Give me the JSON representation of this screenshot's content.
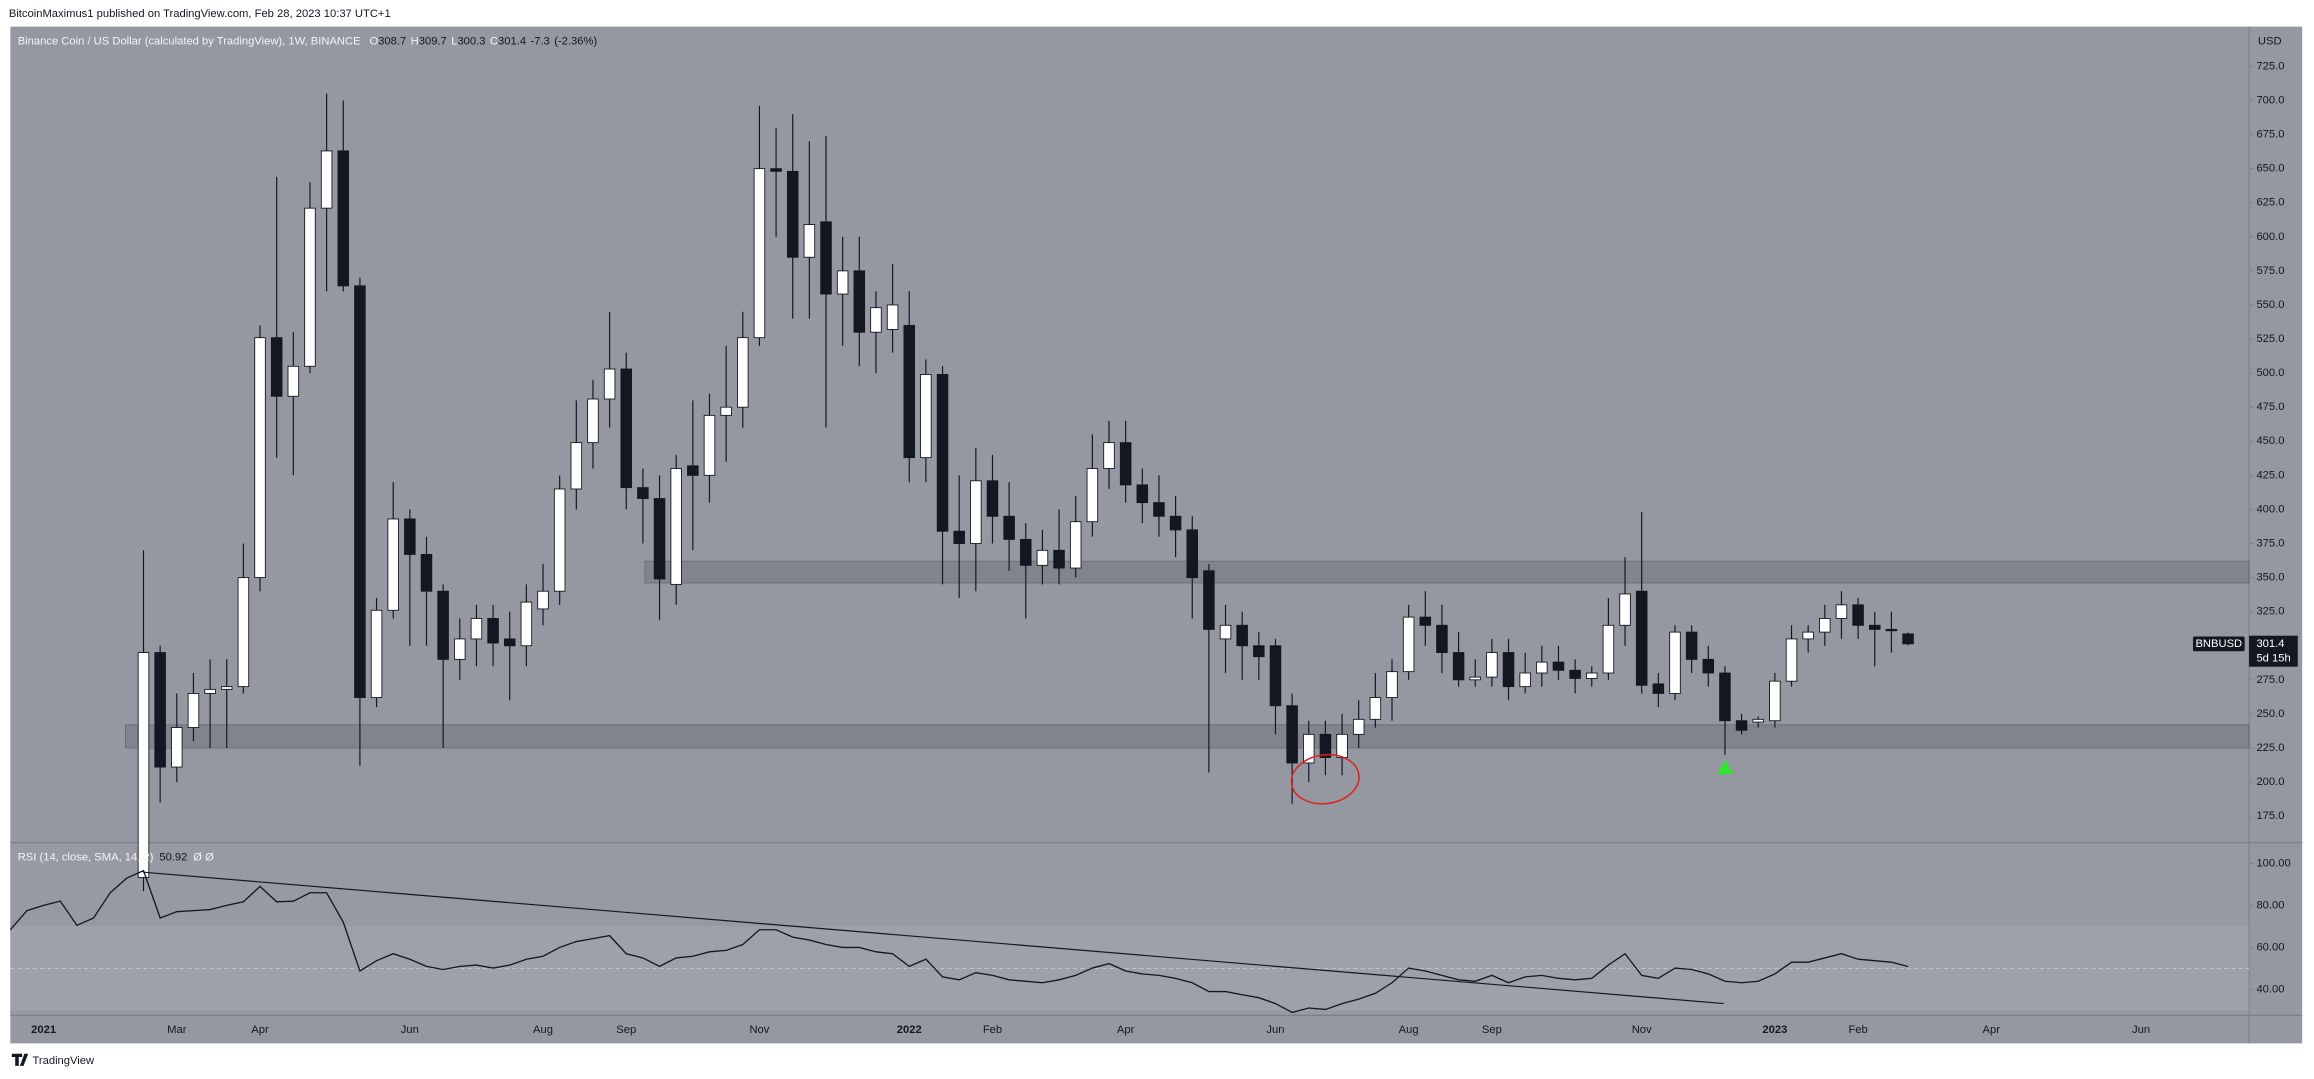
{
  "chart_data": {
    "type": "candlestick",
    "publisher": "BitcoinMaximus1 published on TradingView.com, Feb 28, 2023 10:37 UTC+1",
    "title": "Binance Coin / US Dollar (calculated by TradingView), 1W, BINANCE",
    "ohlc_labels": [
      "O",
      "H",
      "L",
      "C"
    ],
    "change": -7.3,
    "change_pct": {
      "value": -2.36,
      "label": "(-2.36%)"
    },
    "symbol": "BNBUSD",
    "countdown": "5d 15h",
    "y_axis_label": "USD",
    "footer": "TradingView",
    "categories": [
      null,
      null,
      "2021",
      null,
      null,
      null,
      null,
      null,
      null,
      null,
      "Mar",
      null,
      null,
      null,
      null,
      "Apr",
      null,
      null,
      null,
      null,
      null,
      null,
      null,
      null,
      "Jun",
      null,
      null,
      null,
      null,
      null,
      null,
      null,
      "Aug",
      null,
      null,
      null,
      null,
      "Sep",
      null,
      null,
      null,
      null,
      null,
      null,
      null,
      "Nov",
      null,
      null,
      null,
      null,
      null,
      null,
      null,
      null,
      "2022",
      null,
      null,
      null,
      null,
      "Feb",
      null,
      null,
      null,
      null,
      null,
      null,
      null,
      "Apr",
      null,
      null,
      null,
      null,
      null,
      null,
      null,
      null,
      "Jun",
      null,
      null,
      null,
      null,
      null,
      null,
      null,
      "Aug",
      null,
      null,
      null,
      null,
      "Sep",
      null,
      null,
      null,
      null,
      null,
      null,
      null,
      null,
      "Nov",
      null,
      null,
      null,
      null,
      null,
      null,
      null,
      "2023",
      null,
      null,
      null,
      null,
      "Feb",
      null,
      null,
      null,
      null,
      null,
      null,
      null,
      "Apr",
      null,
      null,
      null,
      null,
      null,
      null,
      null,
      null,
      "Jun",
      null,
      null,
      null,
      null,
      null,
      null
    ],
    "series": [
      {
        "name": "BNBUSD",
        "up_color": "#ffffff",
        "down_color": "#131722",
        "open": [
          null,
          null,
          null,
          null,
          null,
          null,
          null,
          null,
          130,
          295,
          211,
          240,
          265,
          268,
          270,
          350,
          526,
          483,
          505,
          621,
          663,
          564,
          262,
          326,
          393,
          367,
          340,
          290,
          305,
          320,
          305,
          300,
          327,
          340,
          415,
          449,
          481,
          503,
          416,
          408,
          345,
          432,
          425,
          469,
          475,
          526,
          650,
          648,
          585,
          611,
          558,
          575,
          530,
          532,
          535,
          438,
          499,
          384,
          375,
          421,
          395,
          378,
          359,
          370,
          357,
          391,
          430,
          449,
          418,
          405,
          395,
          385,
          355,
          305,
          315,
          300,
          300,
          256,
          214,
          235,
          218,
          235,
          246,
          262,
          281,
          321,
          315,
          295,
          275,
          277,
          295,
          270,
          280,
          288,
          282,
          276,
          280,
          315,
          340,
          272,
          265,
          310,
          290,
          280,
          245,
          244,
          245,
          274,
          305,
          310,
          320,
          330,
          315,
          312,
          308.7,
          null,
          null,
          null,
          null,
          null,
          null,
          null,
          null,
          null,
          null,
          null,
          null,
          null,
          null,
          null,
          null,
          null,
          null,
          null,
          null
        ],
        "high": [
          null,
          null,
          null,
          null,
          null,
          null,
          null,
          null,
          370,
          300,
          265,
          280,
          290,
          290,
          375,
          535,
          644,
          530,
          640,
          705,
          700,
          570,
          335,
          420,
          400,
          380,
          345,
          320,
          330,
          330,
          325,
          345,
          360,
          425,
          480,
          495,
          545,
          515,
          430,
          425,
          440,
          480,
          485,
          520,
          545,
          696,
          680,
          690,
          670,
          674,
          600,
          600,
          560,
          580,
          560,
          510,
          505,
          425,
          445,
          440,
          420,
          390,
          385,
          400,
          410,
          455,
          465,
          465,
          430,
          425,
          410,
          395,
          360,
          330,
          325,
          310,
          305,
          265,
          245,
          245,
          250,
          260,
          280,
          290,
          330,
          340,
          330,
          310,
          290,
          305,
          305,
          295,
          300,
          300,
          290,
          285,
          335,
          365,
          398,
          280,
          315,
          315,
          300,
          285,
          250,
          248,
          280,
          315,
          315,
          330,
          340,
          335,
          325,
          325,
          309.7,
          null,
          null,
          null,
          null,
          null,
          null,
          null,
          null,
          null,
          null,
          null,
          null,
          null,
          null,
          null,
          null,
          null,
          null,
          null,
          null
        ],
        "low": [
          null,
          null,
          null,
          null,
          null,
          null,
          null,
          null,
          120,
          185,
          200,
          230,
          225,
          225,
          265,
          340,
          438,
          425,
          500,
          560,
          560,
          212,
          255,
          320,
          300,
          300,
          225,
          275,
          285,
          285,
          260,
          285,
          315,
          330,
          400,
          430,
          460,
          400,
          375,
          319,
          330,
          370,
          405,
          435,
          460,
          520,
          600,
          540,
          540,
          460,
          520,
          505,
          500,
          515,
          420,
          420,
          345,
          335,
          340,
          375,
          355,
          320,
          345,
          345,
          350,
          380,
          415,
          405,
          390,
          380,
          365,
          320,
          207,
          280,
          275,
          275,
          235,
          184,
          200,
          205,
          205,
          225,
          240,
          245,
          275,
          300,
          280,
          270,
          270,
          270,
          260,
          265,
          270,
          275,
          265,
          270,
          275,
          300,
          265,
          255,
          260,
          280,
          270,
          220,
          235,
          240,
          240,
          270,
          295,
          300,
          305,
          305,
          285,
          295,
          300.3,
          null,
          null,
          null,
          null,
          null,
          null,
          null,
          null,
          null,
          null,
          null,
          null,
          null,
          null,
          null,
          null,
          null,
          null,
          null,
          null
        ],
        "close": [
          null,
          null,
          null,
          null,
          null,
          null,
          null,
          null,
          295,
          211,
          240,
          265,
          268,
          270,
          350,
          526,
          483,
          505,
          621,
          663,
          564,
          262,
          326,
          393,
          367,
          340,
          290,
          305,
          320,
          302,
          300,
          332,
          340,
          415,
          449,
          481,
          503,
          416,
          408,
          349,
          430,
          425,
          469,
          475,
          526,
          650,
          648,
          585,
          609,
          558,
          575,
          530,
          548,
          550,
          438,
          499,
          384,
          375,
          421,
          395,
          378,
          359,
          370,
          357,
          391,
          430,
          449,
          418,
          405,
          395,
          385,
          350,
          312,
          315,
          300,
          292,
          256,
          214,
          235,
          218,
          235,
          246,
          262,
          281,
          321,
          315,
          295,
          275,
          277,
          295,
          270,
          280,
          288,
          282,
          276,
          280,
          315,
          338,
          271,
          265,
          310,
          290,
          280,
          245,
          238,
          246,
          274,
          305,
          310,
          320,
          330,
          315,
          312,
          311,
          301.4,
          null,
          null,
          null,
          null,
          null,
          null,
          null,
          null,
          null,
          null,
          null,
          null,
          null,
          null,
          null,
          null,
          null,
          null,
          null,
          null
        ]
      }
    ],
    "ylim": [
      156.6,
      754.2
    ],
    "yticks": [
      {
        "value": 175,
        "label": "175.0"
      },
      {
        "value": 200,
        "label": "200.0"
      },
      {
        "value": 225,
        "label": "225.0"
      },
      {
        "value": 250,
        "label": "250.0"
      },
      {
        "value": 275,
        "label": "275.0"
      },
      {
        "value": 300,
        "label": "300.0"
      },
      {
        "value": 325,
        "label": "325.0"
      },
      {
        "value": 350,
        "label": "350.0"
      },
      {
        "value": 375,
        "label": "375.0"
      },
      {
        "value": 400,
        "label": "400.0"
      },
      {
        "value": 425,
        "label": "425.0"
      },
      {
        "value": 450,
        "label": "450.0"
      },
      {
        "value": 475,
        "label": "475.0"
      },
      {
        "value": 500,
        "label": "500.0"
      },
      {
        "value": 525,
        "label": "525.0"
      },
      {
        "value": 550,
        "label": "550.0"
      },
      {
        "value": 575,
        "label": "575.0"
      },
      {
        "value": 600,
        "label": "600.0"
      },
      {
        "value": 625,
        "label": "625.0"
      },
      {
        "value": 650,
        "label": "650.0"
      },
      {
        "value": 675,
        "label": "675.0"
      },
      {
        "value": 700,
        "label": "700.0"
      },
      {
        "value": 725,
        "label": "725.0"
      }
    ],
    "grid": false,
    "zones": [
      {
        "low": 346,
        "high": 362
      },
      {
        "low": 225,
        "high": 242
      }
    ],
    "rsi": {
      "type": "line",
      "name": "RSI (14, close, SMA, 14, 2)",
      "flags": "Ø Ø",
      "color": "#131722",
      "values": [
        68.4,
        77.5,
        80,
        82,
        70.5,
        74,
        86,
        93,
        96.5,
        74,
        77,
        77.5,
        78,
        80,
        81.7,
        89,
        81.7,
        82,
        86,
        86,
        72,
        48.8,
        53.7,
        57,
        54.4,
        51,
        49.5,
        51,
        51.6,
        50.2,
        51.6,
        54.4,
        55.8,
        60,
        62.8,
        64.2,
        65.6,
        57,
        55,
        51,
        55,
        55.8,
        57.9,
        58.6,
        61.4,
        68.4,
        68.4,
        64.9,
        63.5,
        61.4,
        60,
        60,
        57.9,
        57,
        51,
        54.4,
        46,
        44.6,
        48,
        46.7,
        44.6,
        43.9,
        43.2,
        44.6,
        46.7,
        50.2,
        52.3,
        48.8,
        47.4,
        46.7,
        45.3,
        43.2,
        39,
        39,
        37.5,
        36.1,
        33.3,
        29.1,
        31.2,
        30.5,
        33.3,
        35.4,
        38.2,
        43.2,
        50.2,
        48.8,
        46.7,
        44.6,
        43.9,
        46.7,
        43.2,
        46,
        46.7,
        45.3,
        44.6,
        45.3,
        51.6,
        57,
        46.7,
        45.3,
        50.2,
        49.5,
        47.4,
        43.9,
        43.2,
        43.9,
        47.4,
        53,
        53,
        55,
        57,
        54.4,
        53.7,
        53,
        50.92,
        null,
        null,
        null,
        null,
        null,
        null,
        null,
        null,
        null,
        null,
        null,
        null,
        null,
        null,
        null,
        null,
        null,
        null,
        null,
        null
      ],
      "ylim": [
        27.7,
        109.1
      ],
      "yticks": [
        {
          "value": 40,
          "label": "40.00"
        },
        {
          "value": 60,
          "label": "60.00"
        },
        {
          "value": 80,
          "label": "80.00"
        },
        {
          "value": 100,
          "label": "100.00"
        }
      ],
      "band": [
        30,
        70
      ],
      "midline": 50
    }
  }
}
